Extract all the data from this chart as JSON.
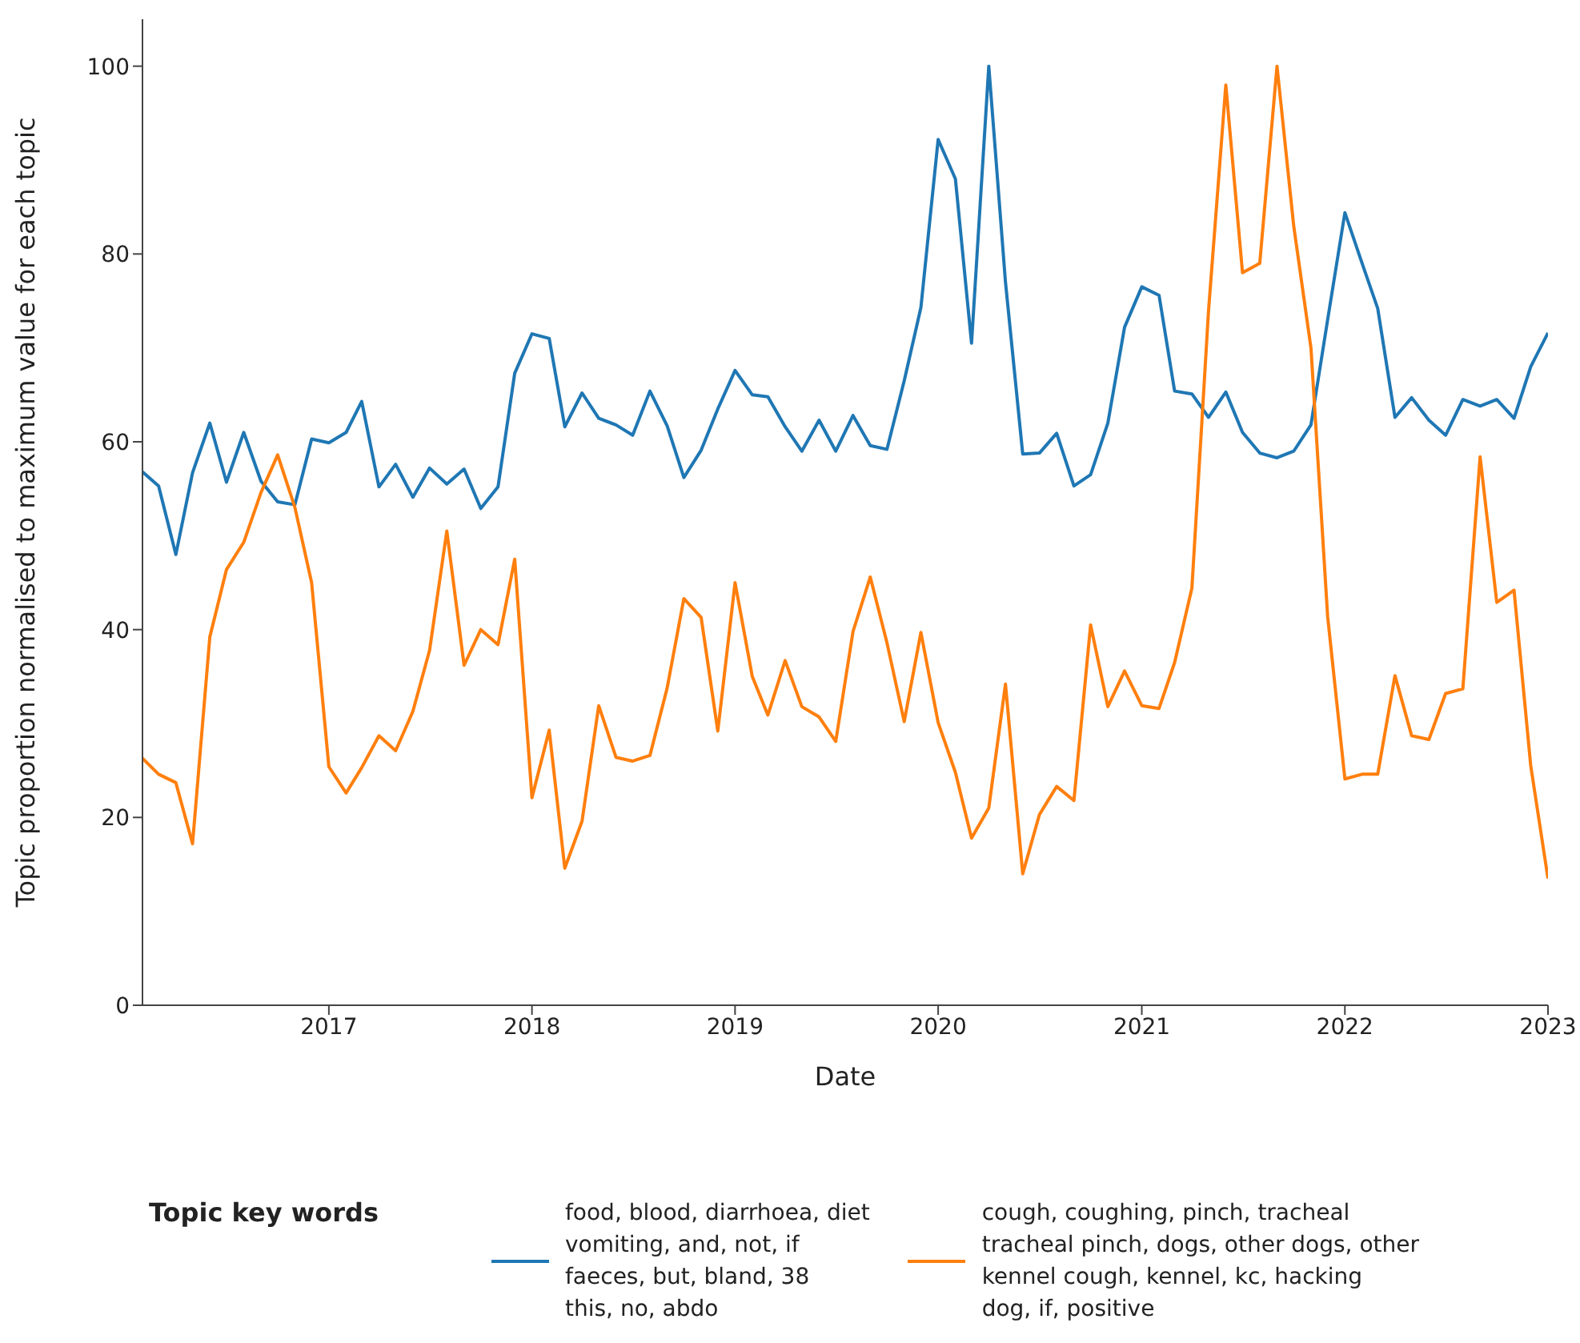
{
  "chart_data": {
    "type": "line",
    "xlabel": "Date",
    "ylabel": "Topic proportion normalised to maximum value for each topic",
    "legend_title": "Topic key words",
    "legend": "bottom",
    "grid": false,
    "marker": "none",
    "line_style": "solid",
    "x": [
      "2016-02",
      "2016-03",
      "2016-04",
      "2016-05",
      "2016-06",
      "2016-07",
      "2016-08",
      "2016-09",
      "2016-10",
      "2016-11",
      "2016-12",
      "2017-01",
      "2017-02",
      "2017-03",
      "2017-04",
      "2017-05",
      "2017-06",
      "2017-07",
      "2017-08",
      "2017-09",
      "2017-10",
      "2017-11",
      "2017-12",
      "2018-01",
      "2018-02",
      "2018-03",
      "2018-04",
      "2018-05",
      "2018-06",
      "2018-07",
      "2018-08",
      "2018-09",
      "2018-10",
      "2018-11",
      "2018-12",
      "2019-01",
      "2019-02",
      "2019-03",
      "2019-04",
      "2019-05",
      "2019-06",
      "2019-07",
      "2019-08",
      "2019-09",
      "2019-10",
      "2019-11",
      "2019-12",
      "2020-01",
      "2020-02",
      "2020-03",
      "2020-04",
      "2020-05",
      "2020-06",
      "2020-07",
      "2020-08",
      "2020-09",
      "2020-10",
      "2020-11",
      "2020-12",
      "2021-01",
      "2021-02",
      "2021-03",
      "2021-04",
      "2021-05",
      "2021-06",
      "2021-07",
      "2021-08",
      "2021-09",
      "2021-10",
      "2021-11",
      "2021-12",
      "2022-01",
      "2022-02",
      "2022-03",
      "2022-04",
      "2022-05",
      "2022-06",
      "2022-07",
      "2022-08",
      "2022-09",
      "2022-10",
      "2022-11",
      "2022-12",
      "2023-01"
    ],
    "series": [
      {
        "name": "food, blood, diarrhoea, diet\nvomiting, and, not, if\nfaeces, but, bland, 38\nthis, no, abdo",
        "color": "#1f77b4",
        "values": [
          56.8,
          55.3,
          48,
          56.7,
          62,
          55.7,
          61,
          55.8,
          53.6,
          53.3,
          60.3,
          59.9,
          61,
          64.3,
          55.2,
          57.6,
          54.1,
          57.2,
          55.5,
          57.1,
          52.9,
          55.2,
          67.3,
          71.5,
          71,
          61.6,
          65.2,
          62.5,
          61.8,
          60.7,
          65.4,
          61.7,
          56.2,
          59.1,
          63.5,
          67.6,
          65,
          64.8,
          61.6,
          59,
          62.3,
          59,
          62.8,
          59.6,
          59.2,
          66.5,
          74.3,
          92.2,
          88,
          70.5,
          100,
          77,
          58.7,
          58.8,
          60.9,
          55.3,
          56.5,
          62,
          72.2,
          76.5,
          75.6,
          65.4,
          65.1,
          62.6,
          65.3,
          61,
          58.8,
          58.3,
          59,
          61.8,
          73,
          84.4,
          79,
          74.2,
          62.6,
          64.7,
          62.3,
          60.7,
          64.5,
          63.8,
          64.5,
          62.5,
          68,
          71.6
        ]
      },
      {
        "name": "cough, coughing, pinch, tracheal\ntracheal pinch, dogs, other dogs, other\nkennel cough, kennel, kc, hacking\ndog, if, positive",
        "color": "#ff7f0e",
        "values": [
          26.3,
          24.6,
          23.7,
          17.2,
          39.2,
          46.4,
          49.3,
          54.6,
          58.6,
          53,
          45,
          25.4,
          22.6,
          25.3,
          28.7,
          27.1,
          31.3,
          37.8,
          50.5,
          36.2,
          40,
          38.4,
          47.5,
          22.1,
          29.3,
          14.6,
          19.6,
          31.9,
          26.4,
          26,
          26.6,
          33.8,
          43.3,
          41.3,
          29.2,
          45,
          35,
          30.9,
          36.7,
          31.8,
          30.7,
          28.1,
          39.8,
          45.6,
          38.6,
          30.2,
          39.7,
          30.1,
          24.8,
          17.8,
          21,
          34.2,
          14,
          20.3,
          23.3,
          21.8,
          40.5,
          31.8,
          35.6,
          31.9,
          31.6,
          36.5,
          44.4,
          74,
          98,
          78,
          79,
          100,
          83,
          70,
          41.4,
          24.1,
          24.6,
          24.6,
          35.1,
          28.7,
          28.3,
          33.2,
          33.7,
          58.4,
          42.9,
          44.2,
          25.5,
          13.5
        ]
      }
    ],
    "xlim": [
      "2016-02",
      "2023-01"
    ],
    "xticks": [
      "2017",
      "2018",
      "2019",
      "2020",
      "2021",
      "2022",
      "2023"
    ],
    "ylim": [
      0,
      105
    ],
    "yticks": [
      0,
      20,
      40,
      60,
      80,
      100
    ]
  }
}
